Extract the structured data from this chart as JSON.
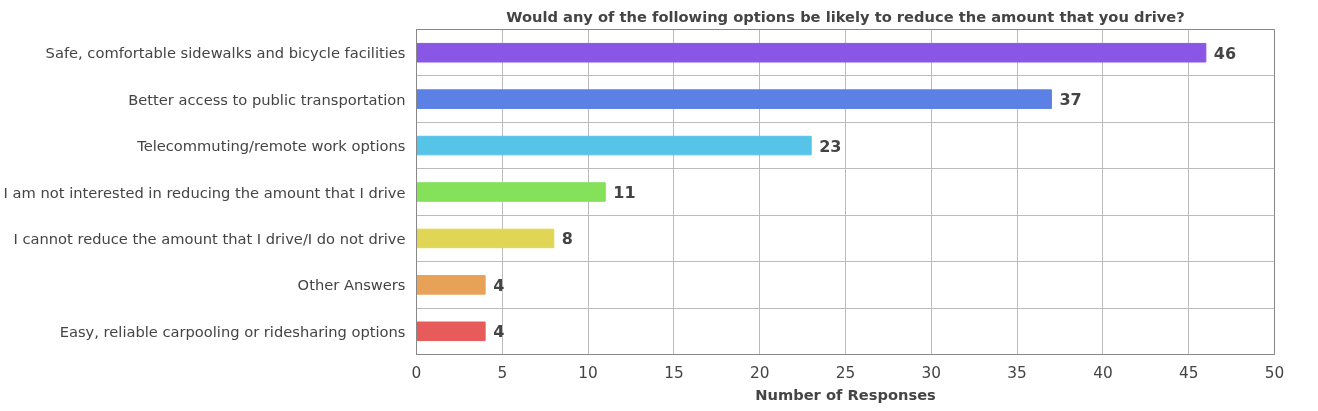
{
  "chart_data": {
    "type": "bar",
    "orientation": "horizontal",
    "title": "Would any of the following options be likely to reduce the amount that you drive?",
    "xlabel": "Number of Responses",
    "categories": [
      "Safe, comfortable sidewalks and bicycle facilities",
      "Better access to public transportation",
      "Telecommuting/remote work options",
      "I am not interested in reducing the amount that I drive",
      "I cannot reduce the amount that I drive/I do not drive",
      "Other Answers",
      "Easy, reliable carpooling or ridesharing options"
    ],
    "values": [
      46,
      37,
      23,
      11,
      8,
      4,
      4
    ],
    "colors": [
      "#8a56e6",
      "#5b80e6",
      "#56c3e8",
      "#85e05a",
      "#e0d555",
      "#e8a257",
      "#e85b5b"
    ],
    "xlim": [
      0,
      50
    ],
    "xticks": [
      0,
      5,
      10,
      15,
      20,
      25,
      30,
      35,
      40,
      45,
      50
    ],
    "grid": true,
    "data_labels": true
  }
}
